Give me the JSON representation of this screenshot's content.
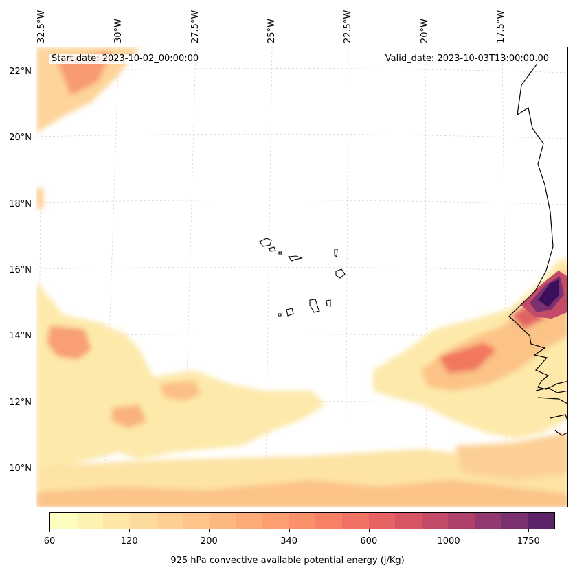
{
  "map": {
    "start_date": "Start date: 2023-10-02_00:00:00",
    "valid_date": "Valid_date: 2023-10-03T13:00:00.00",
    "lon_labels": [
      "32.5°W",
      "30°W",
      "27.5°W",
      "25°W",
      "22.5°W",
      "20°W",
      "17.5°W"
    ],
    "lat_labels": [
      "22°N",
      "20°N",
      "18°N",
      "16°N",
      "14°N",
      "12°N",
      "10°N"
    ],
    "region": "Cape Verde / West Africa coast"
  },
  "colorbar": {
    "label": "925 hPa convective available potential energy (j/Kg)",
    "tick_labels": [
      "60",
      "120",
      "200",
      "340",
      "600",
      "1000",
      "1750"
    ],
    "levels": [
      60,
      80,
      100,
      120,
      150,
      175,
      200,
      250,
      300,
      340,
      400,
      500,
      600,
      700,
      800,
      1000,
      1250,
      1500,
      1750,
      2000
    ],
    "colors": [
      "#fcfdbf",
      "#fcf2b2",
      "#fde6a6",
      "#fddb9c",
      "#fecf92",
      "#fec488",
      "#feb87f",
      "#fdab77",
      "#fc9e70",
      "#fb906b",
      "#f78167",
      "#f07264",
      "#e56463",
      "#d65664",
      "#c34b68",
      "#ad416c",
      "#94396f",
      "#7b316f",
      "#5e2269"
    ]
  }
}
